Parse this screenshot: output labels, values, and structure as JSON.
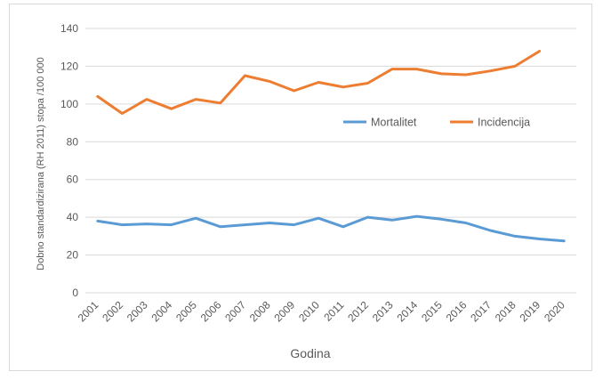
{
  "chart_data": {
    "type": "line",
    "title": "",
    "xlabel": "Godina",
    "ylabel": "Dobno standardizirana (RH 2011) stopa /100 000",
    "categories": [
      "2001",
      "2002",
      "2003",
      "2004",
      "2005",
      "2006",
      "2007",
      "2008",
      "2009",
      "2010",
      "2011",
      "2012",
      "2013",
      "2014",
      "2015",
      "2016",
      "2017",
      "2018",
      "2019",
      "2020"
    ],
    "ylim": [
      0,
      140
    ],
    "yticks": [
      "0",
      "20",
      "40",
      "60",
      "80",
      "100",
      "120",
      "140"
    ],
    "grid": true,
    "legend_position": "right, mid",
    "series": [
      {
        "name": "Mortalitet",
        "color": "#5B9BD5",
        "values": [
          38,
          36,
          36.5,
          36,
          39.5,
          35,
          36,
          37,
          36,
          39.5,
          35,
          40,
          38.5,
          40.5,
          39,
          37,
          33,
          30,
          28.5,
          27.5
        ]
      },
      {
        "name": "Incidencija",
        "color": "#ED7D31",
        "values": [
          104,
          95,
          102.5,
          97.5,
          102.5,
          100.5,
          115,
          112,
          107,
          111.5,
          109,
          111,
          118.5,
          118.5,
          116,
          115.5,
          117.5,
          120,
          128,
          null
        ]
      }
    ]
  }
}
